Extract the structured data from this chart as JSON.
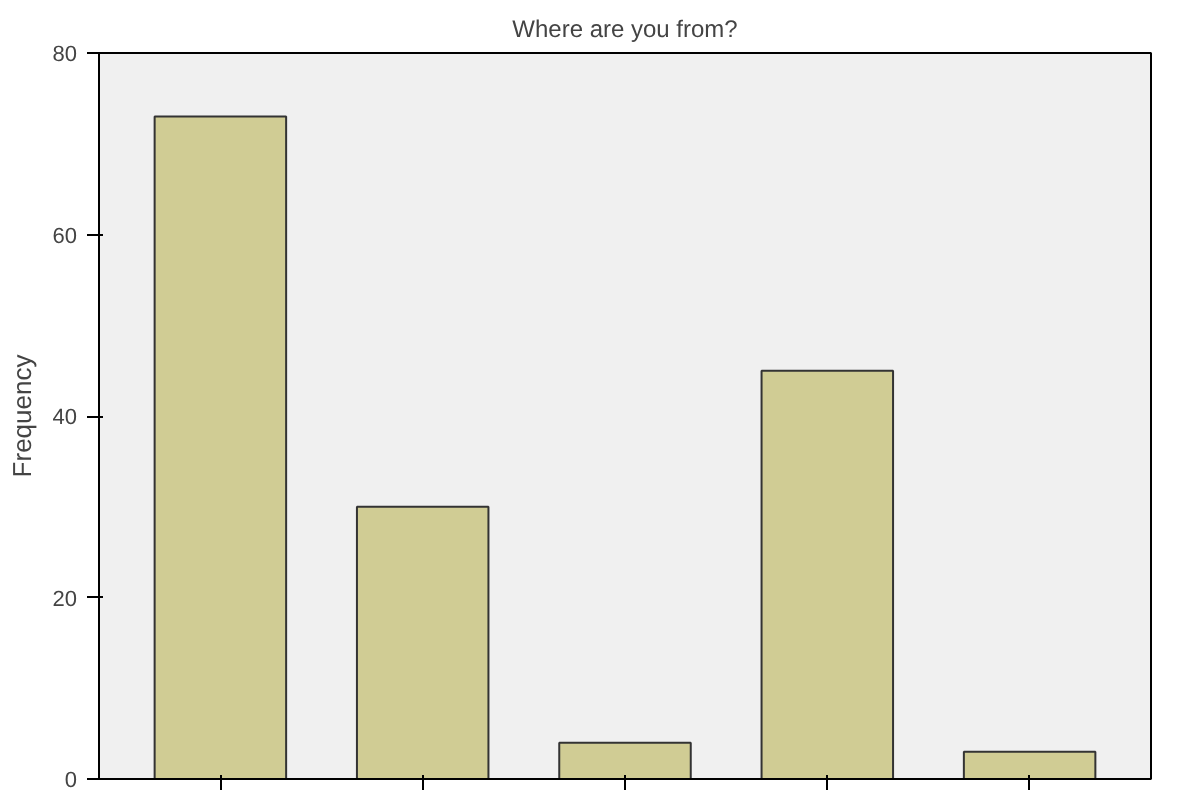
{
  "chart_data": {
    "type": "bar",
    "title": "Where are you from?",
    "ylabel": "Frequency",
    "categories": [
      null,
      null,
      null,
      null,
      null
    ],
    "values": [
      73,
      30,
      4,
      45,
      3
    ],
    "color": "#d0cc94",
    "ylim": [
      0,
      80
    ],
    "yticks": [
      0,
      20,
      40,
      60,
      80
    ],
    "grid": false
  }
}
